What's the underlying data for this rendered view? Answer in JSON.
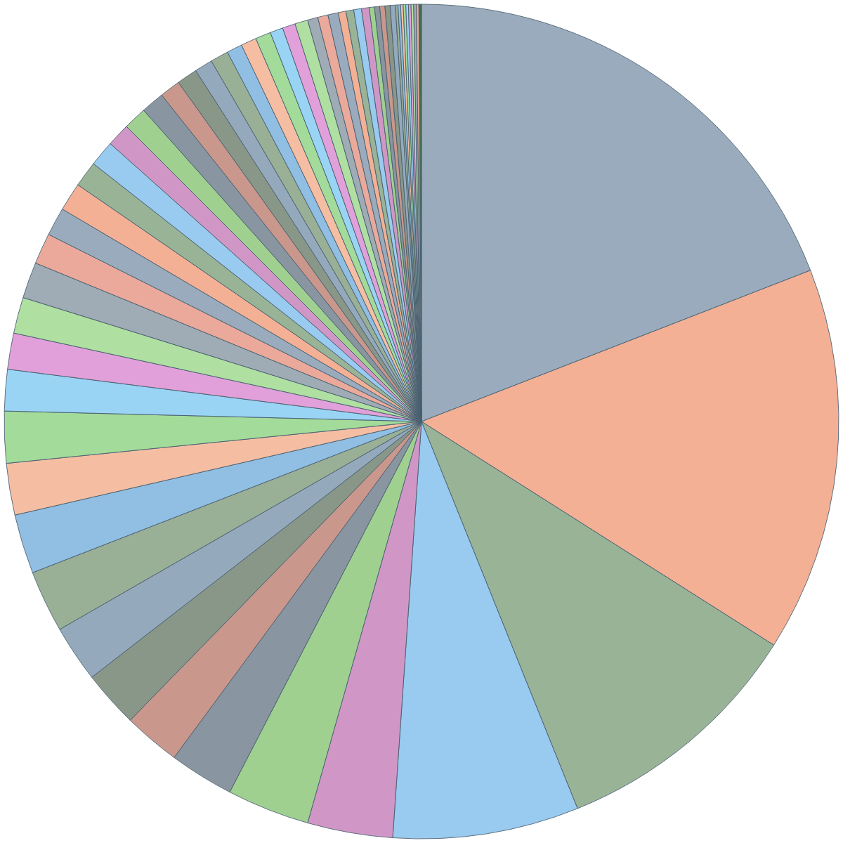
{
  "chart_data": {
    "type": "pie",
    "categories": [
      null,
      null,
      null,
      null,
      null,
      null,
      null,
      null,
      null,
      null,
      null,
      null,
      null,
      null,
      null,
      null,
      null,
      null,
      null,
      null,
      null,
      null,
      null,
      null,
      null,
      null,
      null,
      null,
      null,
      null,
      null,
      null,
      null,
      null,
      null,
      null,
      null,
      null,
      null,
      null,
      null,
      null,
      null,
      null,
      null,
      null,
      null,
      null,
      null,
      null,
      null,
      null,
      null,
      null,
      null,
      null,
      null,
      null
    ],
    "values": [
      19.1,
      14.9,
      9.9,
      7.2,
      3.3,
      3.2,
      2.5,
      2.2,
      2.2,
      2.2,
      2.4,
      2.3,
      2.0,
      2.0,
      1.6,
      1.4,
      1.4,
      1.4,
      1.2,
      1.1,
      1.1,
      1.0,
      1.0,
      0.9,
      0.9,
      0.9,
      0.8,
      0.8,
      0.7,
      0.7,
      0.6,
      0.6,
      0.6,
      0.5,
      0.5,
      0.5,
      0.4,
      0.4,
      0.4,
      0.3,
      0.3,
      0.3,
      0.3,
      0.2,
      0.2,
      0.2,
      0.2,
      0.2,
      0.1,
      0.1,
      0.1,
      0.1,
      0.1,
      0.1,
      0.1,
      0.1,
      0.1,
      0.1
    ],
    "colors": [
      "#8fa3b5",
      "#f2a88a",
      "#8fab8c",
      "#8ec5ee",
      "#cc8cc0",
      "#95cc85",
      "#7d8a96",
      "#c48c80",
      "#7d8c7c",
      "#8aa0b5",
      "#8fa88b",
      "#86b8e0",
      "#f5b89a",
      "#9ad890",
      "#8ed0f5",
      "#df96d6",
      "#a8dc98",
      "#95a3ad",
      "#e8a090",
      "#8fa3b5",
      "#f2a88a",
      "#8fab8c",
      "#8ec5ee",
      "#cc8cc0",
      "#95cc85",
      "#7d8a96",
      "#c48c80",
      "#7d8c7c",
      "#8aa0b5",
      "#8fa88b",
      "#86b8e0",
      "#f5b89a",
      "#9ad890",
      "#8ed0f5",
      "#df96d6",
      "#a8dc98",
      "#95a3ad",
      "#e8a090",
      "#8fa3b5",
      "#f2a88a",
      "#8fab8c",
      "#8ec5ee",
      "#cc8cc0",
      "#95cc85",
      "#7d8a96",
      "#c48c80",
      "#7d8c7c",
      "#8aa0b5",
      "#8fa88b",
      "#86b8e0",
      "#f5b89a",
      "#9ad890",
      "#8ed0f5",
      "#df96d6",
      "#a8dc98",
      "#95a3ad",
      "#e8a090",
      "#2f5f3a"
    ]
  }
}
